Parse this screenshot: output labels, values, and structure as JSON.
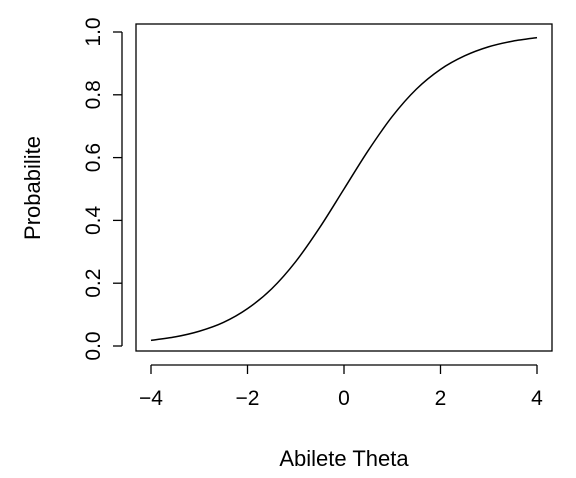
{
  "chart_data": {
    "type": "line",
    "title": "",
    "xlabel": "Abilete Theta",
    "ylabel": "Probabilite",
    "xlim": [
      -4,
      4
    ],
    "ylim": [
      0,
      1
    ],
    "x_ticks": [
      -4,
      -2,
      0,
      2,
      4
    ],
    "x_tick_labels": [
      "−4",
      "−2",
      "0",
      "2",
      "4"
    ],
    "y_ticks": [
      0.0,
      0.2,
      0.4,
      0.6,
      0.8,
      1.0
    ],
    "y_tick_labels": [
      "0.0",
      "0.2",
      "0.4",
      "0.6",
      "0.8",
      "1.0"
    ],
    "grid": false,
    "legend": "none",
    "series": [
      {
        "color": "#000000",
        "x": [
          -4,
          -3.5,
          -3,
          -2.5,
          -2,
          -1.5,
          -1,
          -0.5,
          0,
          0.5,
          1,
          1.5,
          2,
          2.5,
          3,
          3.5,
          4
        ],
        "y": [
          0.018,
          0.029,
          0.047,
          0.075,
          0.119,
          0.182,
          0.269,
          0.378,
          0.5,
          0.622,
          0.731,
          0.818,
          0.881,
          0.924,
          0.953,
          0.971,
          0.982
        ]
      }
    ]
  }
}
